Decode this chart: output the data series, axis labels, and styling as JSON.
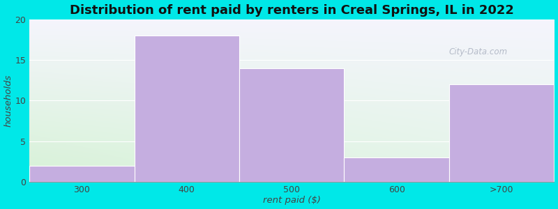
{
  "categories": [
    "300",
    "400",
    "500",
    "600",
    ">700"
  ],
  "values": [
    2,
    18,
    14,
    3,
    12
  ],
  "bar_color": "#c5aee0",
  "title": "Distribution of rent paid by renters in Creal Springs, IL in 2022",
  "xlabel": "rent paid ($)",
  "ylabel": "households",
  "ylim": [
    0,
    20
  ],
  "yticks": [
    0,
    5,
    10,
    15,
    20
  ],
  "background_color": "#00e8e8",
  "plot_bg_left_bottom": "#d4f0d4",
  "plot_bg_right_top": "#f0f0f8",
  "title_fontsize": 13,
  "label_fontsize": 9.5,
  "tick_fontsize": 9,
  "watermark_text": "City-Data.com",
  "grid_color": "#ffffff",
  "bar_width": 1.0,
  "n_categories": 5
}
